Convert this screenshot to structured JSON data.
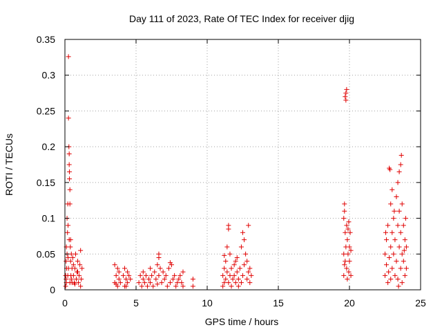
{
  "chart_data": {
    "type": "scatter",
    "title": "Day 111 of 2023, Rate Of TEC Index for receiver djig",
    "xlabel": "GPS time / hours",
    "ylabel": "ROTI / TECUs",
    "xlim": [
      0,
      25
    ],
    "ylim": [
      0,
      0.35
    ],
    "xticks": [
      0,
      5,
      10,
      15,
      20,
      25
    ],
    "xtick_labels": [
      "0",
      "5",
      "10",
      "15",
      "20",
      "25"
    ],
    "yticks": [
      0,
      0.05,
      0.1,
      0.15,
      0.2,
      0.25,
      0.3,
      0.35
    ],
    "ytick_labels": [
      "0",
      "0.05",
      "0.1",
      "0.15",
      "0.2",
      "0.25",
      "0.3",
      "0.35"
    ],
    "grid": true,
    "marker": "+",
    "color": "#e00000",
    "series": [
      {
        "name": "ROTI",
        "points": [
          [
            0.05,
            0.005
          ],
          [
            0.05,
            0.02
          ],
          [
            0.08,
            0.04
          ],
          [
            0.1,
            0.06
          ],
          [
            0.1,
            0.01
          ],
          [
            0.12,
            0.03
          ],
          [
            0.15,
            0.05
          ],
          [
            0.15,
            0.1
          ],
          [
            0.18,
            0.08
          ],
          [
            0.2,
            0.02
          ],
          [
            0.2,
            0.12
          ],
          [
            0.22,
            0.09
          ],
          [
            0.25,
            0.326
          ],
          [
            0.25,
            0.24
          ],
          [
            0.25,
            0.03
          ],
          [
            0.28,
            0.2
          ],
          [
            0.3,
            0.19
          ],
          [
            0.3,
            0.175
          ],
          [
            0.3,
            0.07
          ],
          [
            0.32,
            0.165
          ],
          [
            0.32,
            0.155
          ],
          [
            0.35,
            0.14
          ],
          [
            0.35,
            0.12
          ],
          [
            0.35,
            0.01
          ],
          [
            0.38,
            0.06
          ],
          [
            0.4,
            0.04
          ],
          [
            0.4,
            0.07
          ],
          [
            0.42,
            0.02
          ],
          [
            0.45,
            0.05
          ],
          [
            0.5,
            0.03
          ],
          [
            0.5,
            0.01
          ],
          [
            0.55,
            0.045
          ],
          [
            0.6,
            0.02
          ],
          [
            0.6,
            0.035
          ],
          [
            0.65,
            0.01
          ],
          [
            0.7,
            0.03
          ],
          [
            0.75,
            0.05
          ],
          [
            0.8,
            0.015
          ],
          [
            0.85,
            0.025
          ],
          [
            0.9,
            0.04
          ],
          [
            0.95,
            0.01
          ],
          [
            1.0,
            0.02
          ],
          [
            1.05,
            0.035
          ],
          [
            1.1,
            0.005
          ],
          [
            1.1,
            0.055
          ],
          [
            1.15,
            0.015
          ],
          [
            1.2,
            0.03
          ],
          [
            0.08,
            0.015
          ],
          [
            0.22,
            0.045
          ],
          [
            0.45,
            0.015
          ],
          [
            0.7,
            0.008
          ],
          [
            0.9,
            0.025
          ],
          [
            3.5,
            0.035
          ],
          [
            3.5,
            0.01
          ],
          [
            3.6,
            0.02
          ],
          [
            3.7,
            0.005
          ],
          [
            3.7,
            0.03
          ],
          [
            3.8,
            0.015
          ],
          [
            3.8,
            0.025
          ],
          [
            3.9,
            0.01
          ],
          [
            4.1,
            0.02
          ],
          [
            4.2,
            0.005
          ],
          [
            4.2,
            0.03
          ],
          [
            4.3,
            0.015
          ],
          [
            4.4,
            0.025
          ],
          [
            4.4,
            0.01
          ],
          [
            4.5,
            0.02
          ],
          [
            4.6,
            0.015
          ],
          [
            3.6,
            0.008
          ],
          [
            4.3,
            0.005
          ],
          [
            5.2,
            0.01
          ],
          [
            5.3,
            0.02
          ],
          [
            5.4,
            0.005
          ],
          [
            5.5,
            0.025
          ],
          [
            5.5,
            0.015
          ],
          [
            5.6,
            0.01
          ],
          [
            5.7,
            0.02
          ],
          [
            5.8,
            0.005
          ],
          [
            5.9,
            0.015
          ],
          [
            6.0,
            0.03
          ],
          [
            6.0,
            0.01
          ],
          [
            6.1,
            0.02
          ],
          [
            6.2,
            0.005
          ],
          [
            6.3,
            0.025
          ],
          [
            6.4,
            0.015
          ],
          [
            6.5,
            0.035
          ],
          [
            6.5,
            0.008
          ],
          [
            6.6,
            0.045
          ],
          [
            6.6,
            0.02
          ],
          [
            6.7,
            0.03
          ],
          [
            6.8,
            0.01
          ],
          [
            6.9,
            0.025
          ],
          [
            7.0,
            0.015
          ],
          [
            7.1,
            0.02
          ],
          [
            7.2,
            0.005
          ],
          [
            7.3,
            0.03
          ],
          [
            7.4,
            0.01
          ],
          [
            7.5,
            0.035
          ],
          [
            7.6,
            0.015
          ],
          [
            7.7,
            0.02
          ],
          [
            7.8,
            0.005
          ],
          [
            7.9,
            0.01
          ],
          [
            8.0,
            0.015
          ],
          [
            8.1,
            0.02
          ],
          [
            8.2,
            0.01
          ],
          [
            8.3,
            0.005
          ],
          [
            8.3,
            0.025
          ],
          [
            9.0,
            0.005
          ],
          [
            9.0,
            0.015
          ],
          [
            6.6,
            0.05
          ],
          [
            7.4,
            0.038
          ],
          [
            11.1,
            0.02
          ],
          [
            11.1,
            0.005
          ],
          [
            11.2,
            0.03
          ],
          [
            11.2,
            0.01
          ],
          [
            11.3,
            0.04
          ],
          [
            11.3,
            0.015
          ],
          [
            11.4,
            0.025
          ],
          [
            11.4,
            0.06
          ],
          [
            11.5,
            0.085
          ],
          [
            11.5,
            0.09
          ],
          [
            11.5,
            0.01
          ],
          [
            11.6,
            0.02
          ],
          [
            11.6,
            0.05
          ],
          [
            11.7,
            0.03
          ],
          [
            11.7,
            0.005
          ],
          [
            11.8,
            0.015
          ],
          [
            11.9,
            0.035
          ],
          [
            11.9,
            0.02
          ],
          [
            12.0,
            0.01
          ],
          [
            12.1,
            0.025
          ],
          [
            12.1,
            0.045
          ],
          [
            12.2,
            0.005
          ],
          [
            12.2,
            0.015
          ],
          [
            12.3,
            0.03
          ],
          [
            12.4,
            0.06
          ],
          [
            12.4,
            0.01
          ],
          [
            12.5,
            0.08
          ],
          [
            12.5,
            0.02
          ],
          [
            12.6,
            0.07
          ],
          [
            12.6,
            0.035
          ],
          [
            12.7,
            0.05
          ],
          [
            12.8,
            0.015
          ],
          [
            12.8,
            0.04
          ],
          [
            12.9,
            0.09
          ],
          [
            12.9,
            0.025
          ],
          [
            13.0,
            0.03
          ],
          [
            13.0,
            0.01
          ],
          [
            13.1,
            0.02
          ],
          [
            11.2,
            0.048
          ],
          [
            12.0,
            0.04
          ],
          [
            19.6,
            0.02
          ],
          [
            19.6,
            0.05
          ],
          [
            19.6,
            0.1
          ],
          [
            19.65,
            0.11
          ],
          [
            19.65,
            0.12
          ],
          [
            19.7,
            0.27
          ],
          [
            19.75,
            0.275
          ],
          [
            19.75,
            0.265
          ],
          [
            19.8,
            0.28
          ],
          [
            19.7,
            0.08
          ],
          [
            19.7,
            0.04
          ],
          [
            19.75,
            0.06
          ],
          [
            19.8,
            0.03
          ],
          [
            19.8,
            0.09
          ],
          [
            19.85,
            0.07
          ],
          [
            19.85,
            0.015
          ],
          [
            19.9,
            0.05
          ],
          [
            19.9,
            0.085
          ],
          [
            19.95,
            0.025
          ],
          [
            20.0,
            0.06
          ],
          [
            20.0,
            0.04
          ],
          [
            20.05,
            0.08
          ],
          [
            20.1,
            0.02
          ],
          [
            20.1,
            0.055
          ],
          [
            19.65,
            0.035
          ],
          [
            19.95,
            0.095
          ],
          [
            22.5,
            0.02
          ],
          [
            22.5,
            0.05
          ],
          [
            22.6,
            0.07
          ],
          [
            22.6,
            0.035
          ],
          [
            22.7,
            0.01
          ],
          [
            22.7,
            0.09
          ],
          [
            22.8,
            0.045
          ],
          [
            22.8,
            0.17
          ],
          [
            22.85,
            0.168
          ],
          [
            22.9,
            0.06
          ],
          [
            22.9,
            0.12
          ],
          [
            22.9,
            0.015
          ],
          [
            23.0,
            0.08
          ],
          [
            23.0,
            0.03
          ],
          [
            23.0,
            0.14
          ],
          [
            23.1,
            0.1
          ],
          [
            23.1,
            0.05
          ],
          [
            23.2,
            0.02
          ],
          [
            23.2,
            0.07
          ],
          [
            23.3,
            0.13
          ],
          [
            23.3,
            0.04
          ],
          [
            23.4,
            0.09
          ],
          [
            23.4,
            0.015
          ],
          [
            23.4,
            0.15
          ],
          [
            23.5,
            0.11
          ],
          [
            23.5,
            0.06
          ],
          [
            23.5,
            0.165
          ],
          [
            23.6,
            0.175
          ],
          [
            23.6,
            0.08
          ],
          [
            23.6,
            0.03
          ],
          [
            23.65,
            0.188
          ],
          [
            23.7,
            0.12
          ],
          [
            23.7,
            0.05
          ],
          [
            23.7,
            0.01
          ],
          [
            23.8,
            0.09
          ],
          [
            23.8,
            0.04
          ],
          [
            23.9,
            0.07
          ],
          [
            23.9,
            0.02
          ],
          [
            23.95,
            0.1
          ],
          [
            24.0,
            0.03
          ],
          [
            24.0,
            0.06
          ],
          [
            22.55,
            0.08
          ],
          [
            22.75,
            0.025
          ],
          [
            23.15,
            0.11
          ],
          [
            23.45,
            0.005
          ],
          [
            23.85,
            0.055
          ]
        ]
      }
    ]
  }
}
